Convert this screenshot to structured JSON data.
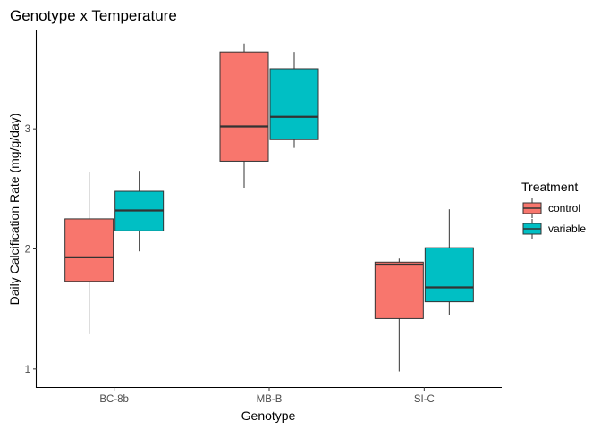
{
  "chart_data": {
    "type": "boxplot",
    "title": "Genotype x Temperature",
    "xlabel": "Genotype",
    "ylabel": "Daily Calcification Rate (mg/g/day)",
    "categories": [
      "BC-8b",
      "MB-B",
      "SI-C"
    ],
    "ylim": [
      0.85,
      3.82
    ],
    "yticks": [
      1,
      2,
      3
    ],
    "grid": false,
    "legend": {
      "title": "Treatment",
      "placement": "right"
    },
    "series": [
      {
        "name": "control",
        "color": "#F8766D",
        "boxes": [
          {
            "min": 1.29,
            "q1": 1.73,
            "median": 1.93,
            "q3": 2.25,
            "max": 2.64
          },
          {
            "min": 2.51,
            "q1": 2.73,
            "median": 3.02,
            "q3": 3.64,
            "max": 3.71
          },
          {
            "min": 0.98,
            "q1": 1.42,
            "median": 1.87,
            "q3": 1.89,
            "max": 1.92
          }
        ]
      },
      {
        "name": "variable",
        "color": "#00BFC4",
        "boxes": [
          {
            "min": 1.98,
            "q1": 2.15,
            "median": 2.32,
            "q3": 2.48,
            "max": 2.65
          },
          {
            "min": 2.84,
            "q1": 2.91,
            "median": 3.1,
            "q3": 3.5,
            "max": 3.64
          },
          {
            "min": 1.45,
            "q1": 1.56,
            "median": 1.68,
            "q3": 2.01,
            "max": 2.33
          }
        ]
      }
    ]
  }
}
